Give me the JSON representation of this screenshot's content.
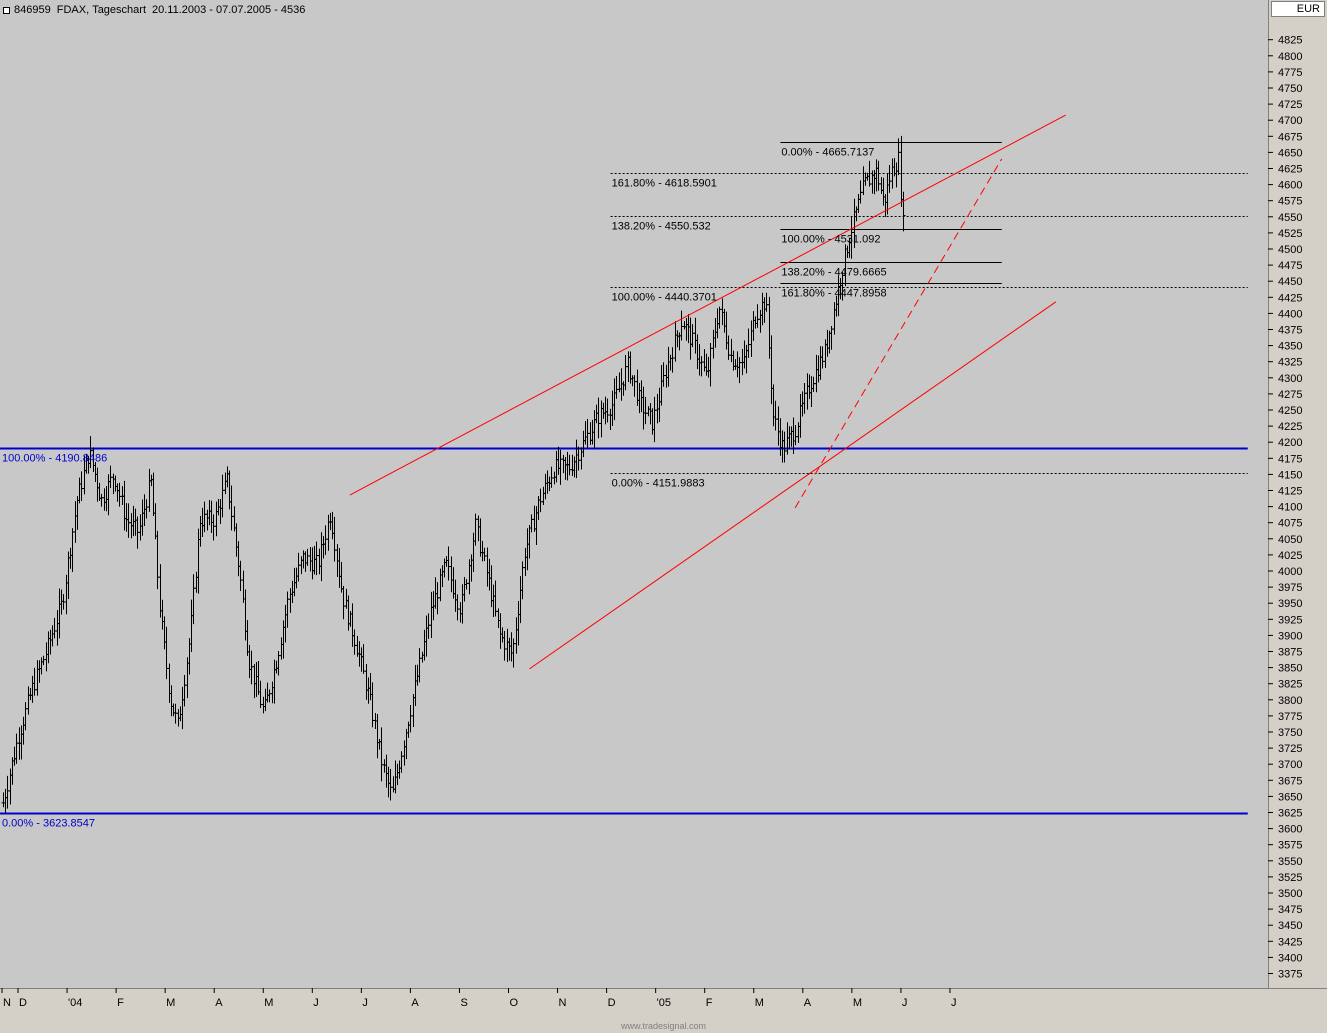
{
  "header": {
    "id": "846959",
    "symbol": "FDAX",
    "period": "Tageschart",
    "date_range": "20.11.2003 - 07.07.2005",
    "last": "4536",
    "currency": "EUR"
  },
  "footer": {
    "brand": "www.tradesignal.com"
  },
  "colors": {
    "background": "#c8c8c8",
    "bars": "#000000",
    "trendline": "#ff0000",
    "fib_primary": "#0000cc",
    "fib_secondary": "#000000"
  },
  "chart_data": {
    "type": "ohlc_bar",
    "title": "846959 FDAX, Tageschart 20.11.2003 - 07.07.2005 - 4536",
    "y_axis": {
      "position": "right",
      "ylim": [
        3350,
        4850
      ],
      "tick_start": 3375,
      "tick_end": 4825,
      "tick_step": 25
    },
    "x_axis": {
      "tick_labels": [
        "N",
        "D",
        "'04",
        "F",
        "M",
        "A",
        "M",
        "J",
        "J",
        "A",
        "S",
        "O",
        "N",
        "D",
        "'05",
        "F",
        "M",
        "A",
        "M",
        "J",
        "J"
      ]
    },
    "grid": false,
    "price_path": [
      {
        "m": 0,
        "p": 3640
      },
      {
        "m": 0.3,
        "p": 3740
      },
      {
        "m": 0.6,
        "p": 3820
      },
      {
        "m": 0.9,
        "p": 3880
      },
      {
        "m": 1.2,
        "p": 3950
      },
      {
        "m": 1.5,
        "p": 4110
      },
      {
        "m": 1.75,
        "p": 4185
      },
      {
        "m": 2.0,
        "p": 4110
      },
      {
        "m": 2.25,
        "p": 4150
      },
      {
        "m": 2.5,
        "p": 4080
      },
      {
        "m": 2.75,
        "p": 4060
      },
      {
        "m": 3.0,
        "p": 4140
      },
      {
        "m": 3.2,
        "p": 3930
      },
      {
        "m": 3.4,
        "p": 3800
      },
      {
        "m": 3.55,
        "p": 3760
      },
      {
        "m": 3.8,
        "p": 3900
      },
      {
        "m": 4.0,
        "p": 4080
      },
      {
        "m": 4.3,
        "p": 4080
      },
      {
        "m": 4.55,
        "p": 4140
      },
      {
        "m": 4.8,
        "p": 4000
      },
      {
        "m": 5.0,
        "p": 3860
      },
      {
        "m": 5.3,
        "p": 3780
      },
      {
        "m": 5.55,
        "p": 3860
      },
      {
        "m": 5.8,
        "p": 3960
      },
      {
        "m": 6.1,
        "p": 4020
      },
      {
        "m": 6.4,
        "p": 4010
      },
      {
        "m": 6.65,
        "p": 4090
      },
      {
        "m": 6.9,
        "p": 3960
      },
      {
        "m": 7.2,
        "p": 3880
      },
      {
        "m": 7.45,
        "p": 3800
      },
      {
        "m": 7.7,
        "p": 3700
      },
      {
        "m": 7.9,
        "p": 3650
      },
      {
        "m": 8.1,
        "p": 3720
      },
      {
        "m": 8.4,
        "p": 3830
      },
      {
        "m": 8.7,
        "p": 3940
      },
      {
        "m": 9.0,
        "p": 4010
      },
      {
        "m": 9.3,
        "p": 3940
      },
      {
        "m": 9.6,
        "p": 4070
      },
      {
        "m": 9.85,
        "p": 3990
      },
      {
        "m": 10.1,
        "p": 3900
      },
      {
        "m": 10.35,
        "p": 3870
      },
      {
        "m": 10.6,
        "p": 4030
      },
      {
        "m": 10.9,
        "p": 4110
      },
      {
        "m": 11.2,
        "p": 4160
      },
      {
        "m": 11.5,
        "p": 4160
      },
      {
        "m": 11.8,
        "p": 4200
      },
      {
        "m": 12.1,
        "p": 4240
      },
      {
        "m": 12.4,
        "p": 4260
      },
      {
        "m": 12.7,
        "p": 4320
      },
      {
        "m": 12.95,
        "p": 4260
      },
      {
        "m": 13.2,
        "p": 4230
      },
      {
        "m": 13.5,
        "p": 4320
      },
      {
        "m": 13.8,
        "p": 4390
      },
      {
        "m": 14.05,
        "p": 4350
      },
      {
        "m": 14.3,
        "p": 4300
      },
      {
        "m": 14.55,
        "p": 4410
      },
      {
        "m": 14.8,
        "p": 4330
      },
      {
        "m": 15.05,
        "p": 4320
      },
      {
        "m": 15.3,
        "p": 4400
      },
      {
        "m": 15.5,
        "p": 4420
      },
      {
        "m": 15.65,
        "p": 4240
      },
      {
        "m": 15.85,
        "p": 4190
      },
      {
        "m": 16.1,
        "p": 4220
      },
      {
        "m": 16.4,
        "p": 4290
      },
      {
        "m": 16.7,
        "p": 4340
      },
      {
        "m": 16.95,
        "p": 4430
      },
      {
        "m": 17.2,
        "p": 4520
      },
      {
        "m": 17.5,
        "p": 4600
      },
      {
        "m": 17.75,
        "p": 4620
      },
      {
        "m": 17.9,
        "p": 4570
      },
      {
        "m": 18.05,
        "p": 4620
      },
      {
        "m": 18.2,
        "p": 4640
      },
      {
        "m": 18.3,
        "p": 4530
      }
    ],
    "horizontal_levels": [
      {
        "value": 4190.8486,
        "label": "100.00% - 4190.8486",
        "style": "solid-blue",
        "x_from_month": -0.1,
        "x_to_month": 25.3
      },
      {
        "value": 3623.8547,
        "label": "0.00% - 3623.8547",
        "style": "solid-blue",
        "x_from_month": -0.1,
        "x_to_month": 25.3
      },
      {
        "value": 4618.5901,
        "label": "161.80% - 4618.5901",
        "style": "dotted",
        "x_from_month": 12.35,
        "x_to_month": 25.3
      },
      {
        "value": 4550.532,
        "label": "138.20% - 4550.532",
        "style": "dotted",
        "x_from_month": 12.35,
        "x_to_month": 25.3
      },
      {
        "value": 4440.3701,
        "label": "100.00% - 4440.3701",
        "style": "dotted",
        "x_from_month": 12.35,
        "x_to_month": 25.3
      },
      {
        "value": 4151.9883,
        "label": "0.00% - 4151.9883",
        "style": "dotted",
        "x_from_month": 12.35,
        "x_to_month": 25.3
      },
      {
        "value": 4665.7137,
        "label": "0.00% - 4665.7137",
        "style": "solid-black",
        "x_from_month": 15.8,
        "x_to_month": 20.3
      },
      {
        "value": 4531.092,
        "label": "100.00% - 4531.092",
        "style": "solid-black",
        "x_from_month": 15.8,
        "x_to_month": 20.3
      },
      {
        "value": 4479.6665,
        "label": "138.20% - 4479.6665",
        "style": "solid-black",
        "x_from_month": 15.8,
        "x_to_month": 20.3
      },
      {
        "value": 4447.8958,
        "label": "161.80% - 4447.8958",
        "style": "solid-black",
        "x_from_month": 15.8,
        "x_to_month": 20.3
      }
    ],
    "trendlines": [
      {
        "style": "solid",
        "from": {
          "m": 7.05,
          "p": 4118
        },
        "to": {
          "m": 21.6,
          "p": 4708
        }
      },
      {
        "style": "solid",
        "from": {
          "m": 10.7,
          "p": 3848
        },
        "to": {
          "m": 21.4,
          "p": 4418
        }
      },
      {
        "style": "dashed",
        "from": {
          "m": 16.1,
          "p": 4098
        },
        "to": {
          "m": 20.3,
          "p": 4640
        }
      }
    ]
  }
}
